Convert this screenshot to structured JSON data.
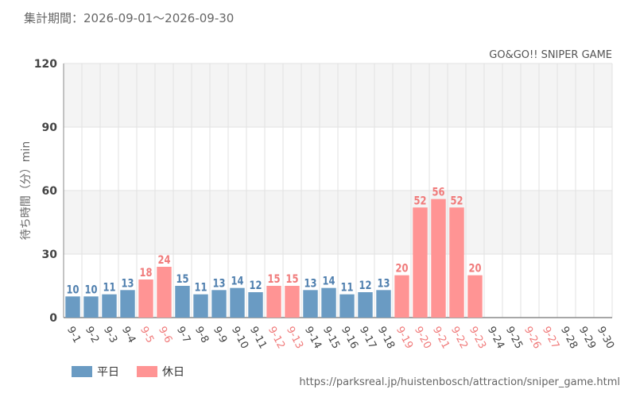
{
  "header": {
    "period_text": "集計期間：2026-09-01〜2026-09-30"
  },
  "footer": {
    "source_url": "https://parksreal.jp/huistenbosch/attraction/sniper_game.html"
  },
  "colors": {
    "weekday": "#6a9bc3",
    "holiday": "#ff9494",
    "weekday_label": "#4f7fae",
    "holiday_label": "#f07a7a",
    "band": "#f4f4f4",
    "grid": "#e2e2e2",
    "axis": "#8a8a8a"
  },
  "chart_data": {
    "type": "bar",
    "title": "GO&GO!! SNIPER GAME",
    "ylabel": "待ち時間（分）min",
    "ylim": [
      0,
      120
    ],
    "yticks": [
      0,
      30,
      60,
      90,
      120
    ],
    "grid": true,
    "legend_position": "bottom-left",
    "legend": [
      {
        "key": "weekday",
        "label": "平日"
      },
      {
        "key": "holiday",
        "label": "休日"
      }
    ],
    "categories": [
      "9-1",
      "9-2",
      "9-3",
      "9-4",
      "9-5",
      "9-6",
      "9-7",
      "9-8",
      "9-9",
      "9-10",
      "9-11",
      "9-12",
      "9-13",
      "9-14",
      "9-15",
      "9-16",
      "9-17",
      "9-18",
      "9-19",
      "9-20",
      "9-21",
      "9-22",
      "9-23",
      "9-24",
      "9-25",
      "9-26",
      "9-27",
      "9-28",
      "9-29",
      "9-30"
    ],
    "values": [
      10,
      10,
      11,
      13,
      18,
      24,
      15,
      11,
      13,
      14,
      12,
      15,
      15,
      13,
      14,
      11,
      12,
      13,
      20,
      52,
      56,
      52,
      20,
      null,
      null,
      null,
      null,
      null,
      null,
      null
    ],
    "day_type": [
      "weekday",
      "weekday",
      "weekday",
      "weekday",
      "holiday",
      "holiday",
      "weekday",
      "weekday",
      "weekday",
      "weekday",
      "weekday",
      "holiday",
      "holiday",
      "weekday",
      "weekday",
      "weekday",
      "weekday",
      "weekday",
      "holiday",
      "holiday",
      "holiday",
      "holiday",
      "holiday",
      "weekday",
      "weekday",
      "holiday",
      "holiday",
      "weekday",
      "weekday",
      "weekday"
    ]
  }
}
